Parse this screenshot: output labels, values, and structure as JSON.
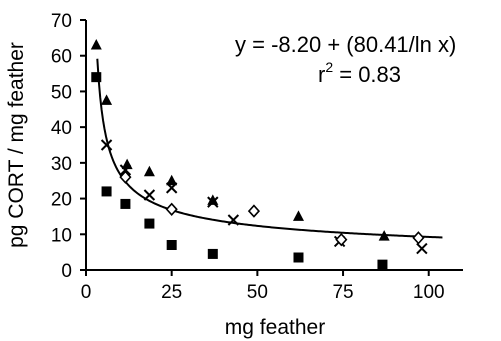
{
  "chart_data": {
    "type": "scatter",
    "xlabel": "mg feather",
    "ylabel": "pg CORT / mg feather",
    "xlim": [
      0,
      110
    ],
    "ylim": [
      0,
      70
    ],
    "xticks": [
      0,
      25,
      50,
      75,
      100
    ],
    "yticks": [
      0,
      10,
      20,
      30,
      40,
      50,
      60,
      70
    ],
    "grid": false,
    "equation": "y = -8.20 + (80.41/ln x)",
    "r2_prefix": "r",
    "r2_exp": "2",
    "r2_value": " = 0.83",
    "fit": {
      "intercept": -8.2,
      "coef": 80.41,
      "x_start": 3.3,
      "x_end": 104
    },
    "series": [
      {
        "marker": "triangle",
        "points": [
          [
            3,
            63
          ],
          [
            6,
            47.5
          ],
          [
            12,
            29.5
          ],
          [
            18.5,
            27.5
          ],
          [
            25,
            25
          ],
          [
            37,
            19.5
          ],
          [
            62,
            15
          ],
          [
            87,
            9.5
          ]
        ]
      },
      {
        "marker": "cross",
        "points": [
          [
            6,
            35
          ],
          [
            11.5,
            28
          ],
          [
            18.5,
            21
          ],
          [
            25,
            23
          ],
          [
            37,
            19
          ],
          [
            43,
            14
          ],
          [
            74,
            8
          ],
          [
            98,
            6
          ]
        ]
      },
      {
        "marker": "diamond",
        "points": [
          [
            11.5,
            26
          ],
          [
            25,
            17
          ],
          [
            49,
            16.5
          ],
          [
            74.5,
            8.5
          ],
          [
            97,
            9
          ]
        ]
      },
      {
        "marker": "square",
        "points": [
          [
            3,
            54
          ],
          [
            6,
            22
          ],
          [
            11.5,
            18.5
          ],
          [
            18.5,
            13
          ],
          [
            25,
            7
          ],
          [
            37,
            4.5
          ],
          [
            62,
            3.5
          ],
          [
            86.5,
            1.5
          ]
        ]
      }
    ]
  }
}
